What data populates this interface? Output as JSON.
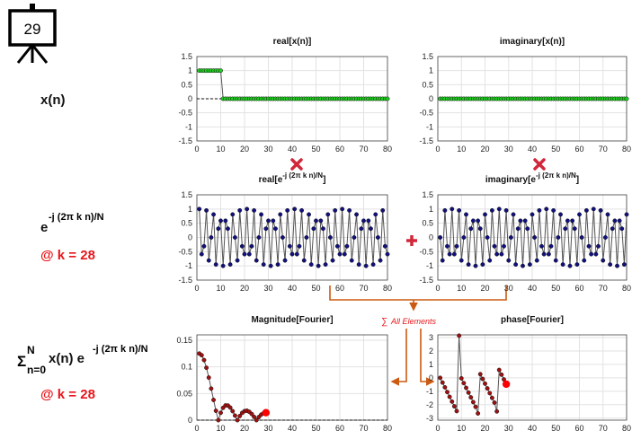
{
  "slide_number": "29",
  "row_labels": {
    "signal": "x(n)",
    "kernel": {
      "base": "e",
      "sup": "-j (2π k n)/N"
    },
    "kernel_k": "@ k = 28",
    "sum": {
      "sigma": "Σ",
      "upper": "N",
      "lower": "n=0",
      "body": "x(n) e",
      "sup": "-j (2π k n)/N"
    },
    "sum_k": "@ k = 28"
  },
  "operators": {
    "sum_symbol": "∑",
    "sum_label": "All Elements"
  },
  "chart_data": [
    {
      "type": "line",
      "title": [
        "real[x(n)]"
      ],
      "color": "#22cc22",
      "line_color": "#555555",
      "zero_line": true,
      "grid": true,
      "xlim": [
        0,
        80
      ],
      "xticks": [
        0,
        10,
        20,
        30,
        40,
        50,
        60,
        70,
        80
      ],
      "ylim": [
        -1.5,
        1.5
      ],
      "yticks": [
        1.5,
        1,
        0.5,
        0,
        -0.5,
        -1,
        -1.5
      ],
      "x": [
        1,
        2,
        3,
        4,
        5,
        6,
        7,
        8,
        9,
        10,
        11,
        12,
        13,
        14,
        15,
        16,
        17,
        18,
        19,
        20,
        21,
        22,
        23,
        24,
        25,
        26,
        27,
        28,
        29,
        30,
        31,
        32,
        33,
        34,
        35,
        36,
        37,
        38,
        39,
        40,
        41,
        42,
        43,
        44,
        45,
        46,
        47,
        48,
        49,
        50,
        51,
        52,
        53,
        54,
        55,
        56,
        57,
        58,
        59,
        60,
        61,
        62,
        63,
        64,
        65,
        66,
        67,
        68,
        69,
        70,
        71,
        72,
        73,
        74,
        75,
        76,
        77,
        78,
        79,
        80
      ],
      "values": [
        1,
        1,
        1,
        1,
        1,
        1,
        1,
        1,
        1,
        1,
        0,
        0,
        0,
        0,
        0,
        0,
        0,
        0,
        0,
        0,
        0,
        0,
        0,
        0,
        0,
        0,
        0,
        0,
        0,
        0,
        0,
        0,
        0,
        0,
        0,
        0,
        0,
        0,
        0,
        0,
        0,
        0,
        0,
        0,
        0,
        0,
        0,
        0,
        0,
        0,
        0,
        0,
        0,
        0,
        0,
        0,
        0,
        0,
        0,
        0,
        0,
        0,
        0,
        0,
        0,
        0,
        0,
        0,
        0,
        0,
        0,
        0,
        0,
        0,
        0,
        0,
        0,
        0,
        0,
        0
      ]
    },
    {
      "type": "line",
      "title": [
        "imaginary[x(n)]"
      ],
      "color": "#22cc22",
      "line_color": "#555555",
      "grid": true,
      "xlim": [
        0,
        80
      ],
      "xticks": [
        0,
        10,
        20,
        30,
        40,
        50,
        60,
        70,
        80
      ],
      "ylim": [
        -1.5,
        1.5
      ],
      "yticks": [
        1.5,
        1,
        0.5,
        0,
        -0.5,
        -1,
        -1.5
      ],
      "x": [
        1,
        2,
        3,
        4,
        5,
        6,
        7,
        8,
        9,
        10,
        11,
        12,
        13,
        14,
        15,
        16,
        17,
        18,
        19,
        20,
        21,
        22,
        23,
        24,
        25,
        26,
        27,
        28,
        29,
        30,
        31,
        32,
        33,
        34,
        35,
        36,
        37,
        38,
        39,
        40,
        41,
        42,
        43,
        44,
        45,
        46,
        47,
        48,
        49,
        50,
        51,
        52,
        53,
        54,
        55,
        56,
        57,
        58,
        59,
        60,
        61,
        62,
        63,
        64,
        65,
        66,
        67,
        68,
        69,
        70,
        71,
        72,
        73,
        74,
        75,
        76,
        77,
        78,
        79,
        80
      ],
      "values": [
        0,
        0,
        0,
        0,
        0,
        0,
        0,
        0,
        0,
        0,
        0,
        0,
        0,
        0,
        0,
        0,
        0,
        0,
        0,
        0,
        0,
        0,
        0,
        0,
        0,
        0,
        0,
        0,
        0,
        0,
        0,
        0,
        0,
        0,
        0,
        0,
        0,
        0,
        0,
        0,
        0,
        0,
        0,
        0,
        0,
        0,
        0,
        0,
        0,
        0,
        0,
        0,
        0,
        0,
        0,
        0,
        0,
        0,
        0,
        0,
        0,
        0,
        0,
        0,
        0,
        0,
        0,
        0,
        0,
        0,
        0,
        0,
        0,
        0,
        0,
        0,
        0,
        0,
        0,
        0
      ]
    },
    {
      "type": "line",
      "title": [
        "real[e",
        "-j (2π k n)/N",
        "]"
      ],
      "color": "#101080",
      "line_color": "#555555",
      "grid": true,
      "xlim": [
        0,
        80
      ],
      "xticks": [
        0,
        10,
        20,
        30,
        40,
        50,
        60,
        70,
        80
      ],
      "ylim": [
        -1.5,
        1.5
      ],
      "yticks": [
        1.5,
        1,
        0.5,
        0,
        -0.5,
        -1,
        -1.5
      ],
      "x": [
        1,
        2,
        3,
        4,
        5,
        6,
        7,
        8,
        9,
        10,
        11,
        12,
        13,
        14,
        15,
        16,
        17,
        18,
        19,
        20,
        21,
        22,
        23,
        24,
        25,
        26,
        27,
        28,
        29,
        30,
        31,
        32,
        33,
        34,
        35,
        36,
        37,
        38,
        39,
        40,
        41,
        42,
        43,
        44,
        45,
        46,
        47,
        48,
        49,
        50,
        51,
        52,
        53,
        54,
        55,
        56,
        57,
        58,
        59,
        60,
        61,
        62,
        63,
        64,
        65,
        66,
        67,
        68,
        69,
        70,
        71,
        72,
        73,
        74,
        75,
        76,
        77,
        78,
        79,
        80
      ],
      "values": [
        1,
        -0.588,
        -0.309,
        0.951,
        -0.809,
        0,
        0.809,
        -0.951,
        0.309,
        0.588,
        -1,
        0.588,
        0.309,
        -0.951,
        0.809,
        0,
        -0.809,
        0.951,
        -0.309,
        -0.588,
        1,
        -0.588,
        -0.309,
        0.951,
        -0.809,
        0,
        0.809,
        -0.951,
        0.309,
        0.588,
        -1,
        0.588,
        0.309,
        -0.951,
        0.809,
        0,
        -0.809,
        0.951,
        -0.309,
        -0.588,
        1,
        -0.588,
        -0.309,
        0.951,
        -0.809,
        0,
        0.809,
        -0.951,
        0.309,
        0.588,
        -1,
        0.588,
        0.309,
        -0.951,
        0.809,
        0,
        -0.809,
        0.951,
        -0.309,
        -0.588,
        1,
        -0.588,
        -0.309,
        0.951,
        -0.809,
        0,
        0.809,
        -0.951,
        0.309,
        0.588,
        -1,
        0.588,
        0.309,
        -0.951,
        0.809,
        0,
        -0.809,
        0.951,
        -0.309,
        -0.588
      ]
    },
    {
      "type": "line",
      "title": [
        "imaginary[e",
        "-j (2π k n)/N",
        "]"
      ],
      "color": "#101080",
      "line_color": "#555555",
      "grid": true,
      "xlim": [
        0,
        80
      ],
      "xticks": [
        0,
        10,
        20,
        30,
        40,
        50,
        60,
        70,
        80
      ],
      "ylim": [
        -1.5,
        1.5
      ],
      "yticks": [
        1.5,
        1,
        0.5,
        0,
        -0.5,
        -1,
        -1.5
      ],
      "x": [
        1,
        2,
        3,
        4,
        5,
        6,
        7,
        8,
        9,
        10,
        11,
        12,
        13,
        14,
        15,
        16,
        17,
        18,
        19,
        20,
        21,
        22,
        23,
        24,
        25,
        26,
        27,
        28,
        29,
        30,
        31,
        32,
        33,
        34,
        35,
        36,
        37,
        38,
        39,
        40,
        41,
        42,
        43,
        44,
        45,
        46,
        47,
        48,
        49,
        50,
        51,
        52,
        53,
        54,
        55,
        56,
        57,
        58,
        59,
        60,
        61,
        62,
        63,
        64,
        65,
        66,
        67,
        68,
        69,
        70,
        71,
        72,
        73,
        74,
        75,
        76,
        77,
        78,
        79,
        80
      ],
      "values": [
        0,
        -0.809,
        0.951,
        -0.309,
        -0.588,
        1,
        -0.588,
        -0.309,
        0.951,
        -0.809,
        0,
        0.809,
        -0.951,
        0.309,
        0.588,
        -1,
        0.588,
        0.309,
        -0.951,
        0.809,
        0,
        -0.809,
        0.951,
        -0.309,
        -0.588,
        1,
        -0.588,
        -0.309,
        0.951,
        -0.809,
        0,
        0.809,
        -0.951,
        0.309,
        0.588,
        -1,
        0.588,
        0.309,
        -0.951,
        0.809,
        0,
        -0.809,
        0.951,
        -0.309,
        -0.588,
        1,
        -0.588,
        -0.309,
        0.951,
        -0.809,
        0,
        0.809,
        -0.951,
        0.309,
        0.588,
        -1,
        0.588,
        0.309,
        -0.951,
        0.809,
        0,
        -0.809,
        0.951,
        -0.309,
        -0.588,
        1,
        -0.588,
        -0.309,
        0.951,
        -0.809,
        0,
        0.809,
        -0.951,
        0.309,
        0.588,
        -1,
        0.588,
        0.309,
        -0.951,
        0.809
      ]
    },
    {
      "type": "line",
      "title": [
        "Magnitude[Fourier]"
      ],
      "color": "#a01010",
      "line_color": "#555555",
      "highlight_color": "#ff0000",
      "zero_line": true,
      "grid": true,
      "xlim": [
        0,
        80
      ],
      "xticks": [
        0,
        10,
        20,
        30,
        40,
        50,
        60,
        70,
        80
      ],
      "ylim": [
        0,
        0.16
      ],
      "yticks": [
        0,
        0.05,
        0.1,
        0.15
      ],
      "x": [
        1,
        2,
        3,
        4,
        5,
        6,
        7,
        8,
        9,
        10,
        11,
        12,
        13,
        14,
        15,
        16,
        17,
        18,
        19,
        20,
        21,
        22,
        23,
        24,
        25,
        26,
        27,
        28,
        29
      ],
      "values": [
        0.125,
        0.1218,
        0.1127,
        0.0983,
        0.0799,
        0.0592,
        0.0379,
        0.0176,
        0,
        0.0138,
        0.0231,
        0.0276,
        0.0275,
        0.0236,
        0.0169,
        0.0086,
        0,
        0.0077,
        0.0136,
        0.017,
        0.0177,
        0.0157,
        0.0116,
        0.0061,
        0,
        0.0058,
        0.0104,
        0.0132,
        0.014
      ]
    },
    {
      "type": "line",
      "title": [
        "phase[Fourier]"
      ],
      "color": "#a01010",
      "line_color": "#555555",
      "highlight_color": "#ff0000",
      "grid": true,
      "xlim": [
        0,
        80
      ],
      "xticks": [
        0,
        10,
        20,
        30,
        40,
        50,
        60,
        70,
        80
      ],
      "ylim": [
        -3.15,
        3.2
      ],
      "yticks": [
        3,
        2,
        1,
        0,
        -1,
        -2,
        -3
      ],
      "x": [
        1,
        2,
        3,
        4,
        5,
        6,
        7,
        8,
        9,
        10,
        11,
        12,
        13,
        14,
        15,
        16,
        17,
        18,
        19,
        20,
        21,
        22,
        23,
        24,
        25,
        26,
        27,
        28,
        29
      ],
      "values": [
        0,
        -0.353,
        -0.707,
        -1.06,
        -1.414,
        -1.767,
        -2.121,
        -2.474,
        3.142,
        -0.039,
        -0.393,
        -0.746,
        -1.1,
        -1.453,
        -1.807,
        -2.16,
        -2.65,
        0.275,
        -0.079,
        -0.432,
        -0.786,
        -1.139,
        -1.493,
        -1.846,
        -2.5,
        0.588,
        0.235,
        -0.118,
        -0.471
      ]
    }
  ]
}
